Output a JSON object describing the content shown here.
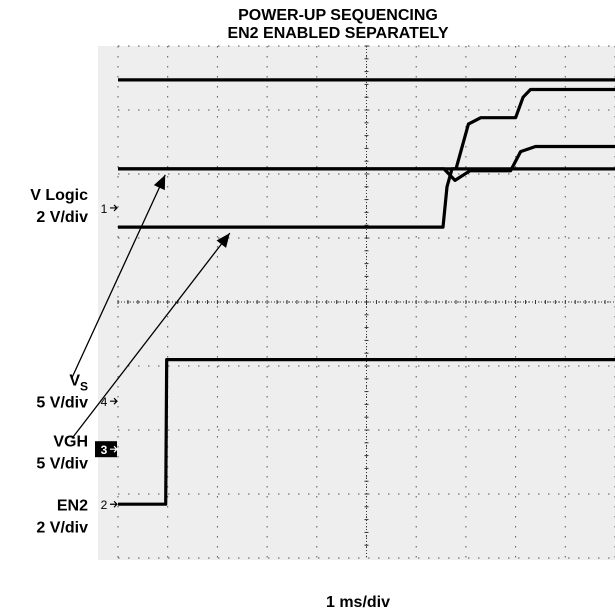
{
  "chart_data": {
    "type": "line",
    "title": "POWER-UP SEQUENCING",
    "subtitle": "EN2 ENABLED SEPARATELY",
    "xlabel": "1 ms/div",
    "grid": true,
    "x_divisions": 10,
    "y_divisions": 8,
    "xlim": [
      0,
      10
    ],
    "ylim": [
      0,
      8
    ],
    "channel_markers": [
      {
        "label": "1",
        "level": 5.47
      },
      {
        "label": "4",
        "level": 2.45
      },
      {
        "label": "3",
        "level": 1.7,
        "highlight": true
      },
      {
        "label": "2",
        "level": 0.84
      }
    ],
    "side_labels": [
      {
        "lines": [
          "V Logic",
          "2 V/div"
        ],
        "y_level": 5.5
      },
      {
        "lines": [
          "V_S",
          "5 V/div"
        ],
        "y_level": 2.6
      },
      {
        "lines": [
          "VGH",
          "5 V/div"
        ],
        "y_level": 1.65
      },
      {
        "lines": [
          "EN2",
          "2 V/div"
        ],
        "y_level": 0.65
      }
    ],
    "arrows": [
      {
        "from_label": "V_S",
        "to_series": "V_S trace",
        "at_x": 0.95
      },
      {
        "from_label": "VGH",
        "to_series": "VGH trace",
        "at_x": 2.25
      }
    ],
    "series": [
      {
        "name": "",
        "x": [
          0,
          10
        ],
        "y": [
          7.47,
          7.47
        ]
      },
      {
        "name": "",
        "x": [
          0,
          6.8,
          7.05,
          7.3,
          8.0,
          8.15,
          8.3,
          10
        ],
        "y": [
          6.08,
          6.08,
          6.78,
          6.88,
          6.88,
          7.2,
          7.32,
          7.32
        ]
      },
      {
        "name": "",
        "x": [
          0,
          6.56,
          6.78,
          7.08,
          7.9,
          8.1,
          8.4,
          10
        ],
        "y": [
          6.08,
          6.08,
          5.9,
          6.05,
          6.05,
          6.35,
          6.43,
          6.43
        ]
      },
      {
        "name": "",
        "x": [
          0,
          6.54,
          6.62,
          6.72,
          10
        ],
        "y": [
          5.17,
          5.17,
          5.8,
          6.08,
          6.08
        ]
      },
      {
        "name": "",
        "x": [
          0,
          0.96,
          0.98,
          10
        ],
        "y": [
          0.84,
          0.84,
          3.1,
          3.1
        ]
      }
    ]
  }
}
